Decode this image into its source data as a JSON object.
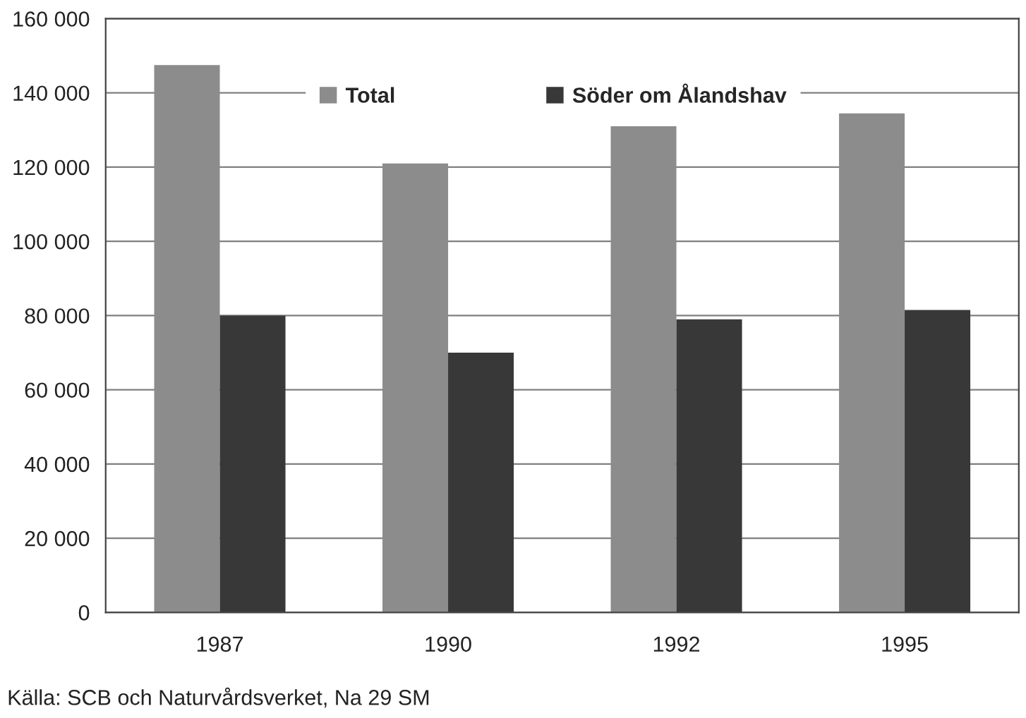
{
  "chart_data": {
    "type": "bar",
    "categories": [
      "1987",
      "1990",
      "1992",
      "1995"
    ],
    "series": [
      {
        "name": "Total",
        "color": "#8c8c8c",
        "values": [
          147500,
          121000,
          131000,
          134500
        ]
      },
      {
        "name": "Söder om Ålandshav",
        "color": "#383838",
        "values": [
          80000,
          70000,
          79000,
          81500
        ]
      }
    ],
    "ylim": [
      0,
      160000
    ],
    "yticks": [
      {
        "value": 0,
        "label": "0"
      },
      {
        "value": 20000,
        "label": "20 000"
      },
      {
        "value": 40000,
        "label": "40 000"
      },
      {
        "value": 60000,
        "label": "60 000"
      },
      {
        "value": 80000,
        "label": "80 000"
      },
      {
        "value": 100000,
        "label": "100 000"
      },
      {
        "value": 120000,
        "label": "120 000"
      },
      {
        "value": 140000,
        "label": "140 000"
      },
      {
        "value": 160000,
        "label": "160 000"
      }
    ],
    "grid": "y",
    "legend": "top",
    "annotations": [
      "Källa: SCB och Naturvårdsverket, Na 29 SM"
    ]
  }
}
